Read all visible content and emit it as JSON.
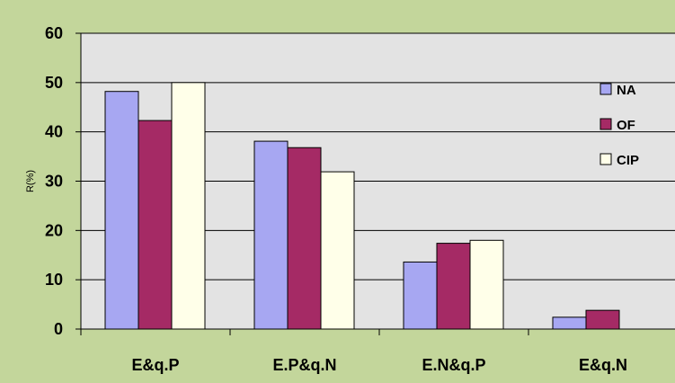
{
  "chart_data": {
    "type": "bar",
    "title": "",
    "xlabel": "",
    "ylabel": "R(%)",
    "ylim": [
      0,
      60
    ],
    "yticks": [
      0,
      10,
      20,
      30,
      40,
      50,
      60
    ],
    "categories": [
      "E&q.P",
      "E.P&q.N",
      "E.N&q.P",
      "E&q.N"
    ],
    "series": [
      {
        "name": "NA",
        "color": "#a7a7f2",
        "values": [
          48.2,
          38.1,
          13.6,
          2.4
        ]
      },
      {
        "name": "OF",
        "color": "#a52a65",
        "values": [
          42.3,
          36.8,
          17.4,
          3.8
        ]
      },
      {
        "name": "CIP",
        "color": "#ffffe9",
        "values": [
          50.0,
          31.9,
          18.0,
          0
        ]
      }
    ],
    "grid": true,
    "legend": "right",
    "colors": {
      "outer_background": "#c3d69b",
      "plot_background": "#e3e3e3",
      "gridline": "#000000"
    }
  }
}
